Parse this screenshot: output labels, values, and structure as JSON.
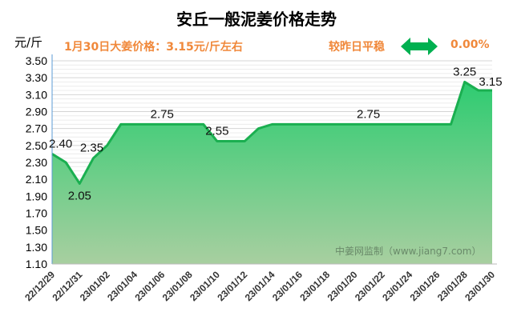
{
  "header": {
    "title": "安丘一般泥姜价格走势",
    "unit": "元/斤",
    "price_info": "1月30日大姜价格：3.15元/斤左右",
    "compare": "较昨日平稳",
    "change_pct": "0.00%",
    "arrow_icon": "double-arrow-icon",
    "arrow_color": "#00b050"
  },
  "watermark": "中姜网监制（www.jiang7.com）",
  "chart_data": {
    "type": "area",
    "title": "安丘一般泥姜价格走势",
    "ylabel": "元/斤",
    "xlabel": "",
    "ylim": [
      1.1,
      3.5
    ],
    "yticks": [
      "3.50",
      "3.30",
      "3.10",
      "2.90",
      "2.70",
      "2.50",
      "2.30",
      "2.10",
      "1.90",
      "1.70",
      "1.50",
      "1.30",
      "1.10"
    ],
    "xticks": [
      "22/12/29",
      "22/12/31",
      "23/01/02",
      "23/01/04",
      "23/01/06",
      "23/01/08",
      "23/01/10",
      "23/01/12",
      "23/01/14",
      "23/01/16",
      "23/01/18",
      "23/01/20",
      "23/01/22",
      "23/01/24",
      "23/01/26",
      "23/01/28",
      "23/01/30"
    ],
    "values": [
      2.4,
      2.3,
      2.05,
      2.35,
      2.5,
      2.75,
      2.75,
      2.75,
      2.75,
      2.75,
      2.75,
      2.75,
      2.55,
      2.55,
      2.55,
      2.7,
      2.75,
      2.75,
      2.75,
      2.75,
      2.75,
      2.75,
      2.75,
      2.75,
      2.75,
      2.75,
      2.75,
      2.75,
      2.75,
      2.75,
      3.25,
      3.15,
      3.15
    ],
    "data_labels": [
      {
        "i": 0,
        "text": "2.40"
      },
      {
        "i": 2,
        "text": "2.05"
      },
      {
        "i": 3,
        "text": "2.35"
      },
      {
        "i": 8,
        "text": "2.75"
      },
      {
        "i": 12,
        "text": "2.55"
      },
      {
        "i": 23,
        "text": "2.75"
      },
      {
        "i": 30,
        "text": "3.25"
      },
      {
        "i": 32,
        "text": "3.15"
      }
    ],
    "line_color": "#1aaf50"
  }
}
